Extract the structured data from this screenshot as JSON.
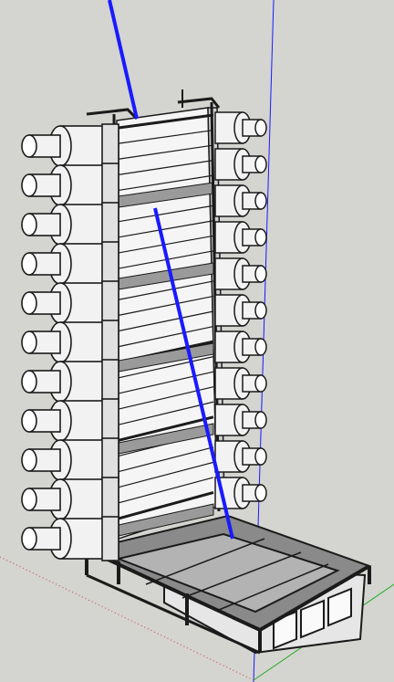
{
  "viewport": {
    "background": "#d4d4d0",
    "axis_colors": {
      "blue": "#1a1aff",
      "green": "#22aa22",
      "red": "#cc4444"
    }
  },
  "model": {
    "outline_color": "#1b1b1b",
    "roller_fill": "#f2f2f2",
    "shadow_fill": "#9a9a9a",
    "left_rollers": 11,
    "right_rollers": 11,
    "rack_sections": 5
  }
}
